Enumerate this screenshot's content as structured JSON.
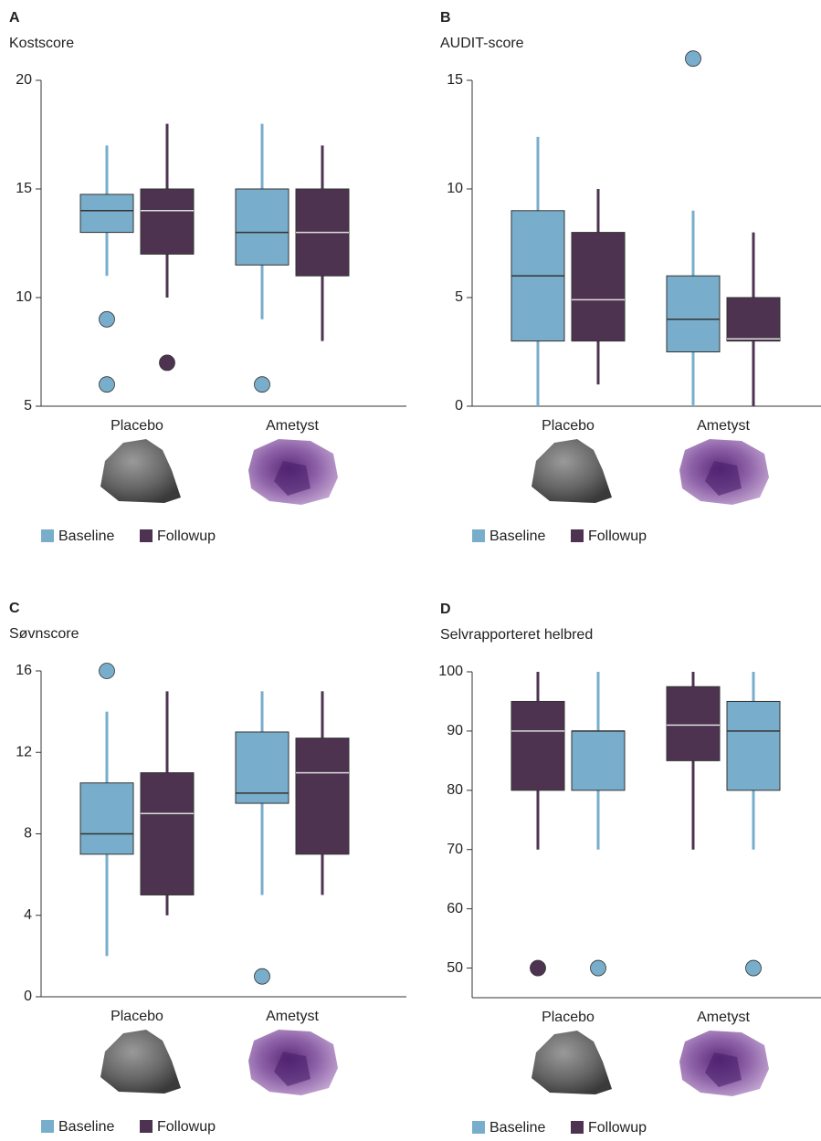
{
  "chart_data": [
    {
      "type": "box",
      "panel": "A",
      "ylabel": "Kostscore",
      "categories": [
        "Placebo",
        "Ametyst"
      ],
      "ylim": [
        5,
        20
      ],
      "yticks": [
        5,
        10,
        15,
        20
      ],
      "box_order": [
        0,
        1
      ],
      "series": [
        {
          "name": "Baseline",
          "color": "#78aecb",
          "median_color": "#333333",
          "values": [
            {
              "low": 11,
              "q1": 13,
              "median": 14,
              "q3": 14.75,
              "high": 17,
              "outliers": [
                9,
                6
              ]
            },
            {
              "low": 9,
              "q1": 11.5,
              "median": 13,
              "q3": 15,
              "high": 18,
              "outliers": [
                6
              ]
            }
          ]
        },
        {
          "name": "Followup",
          "color": "#4d3350",
          "median_color": "#dddddd",
          "values": [
            {
              "low": 10,
              "q1": 12,
              "median": 14,
              "q3": 15,
              "high": 18,
              "outliers": [
                7
              ]
            },
            {
              "low": 8,
              "q1": 11,
              "median": 13,
              "q3": 15,
              "high": 17,
              "outliers": []
            }
          ]
        }
      ]
    },
    {
      "type": "box",
      "panel": "B",
      "ylabel": "AUDIT-score",
      "categories": [
        "Placebo",
        "Ametyst"
      ],
      "ylim": [
        0,
        15
      ],
      "yticks": [
        0,
        5,
        10,
        15
      ],
      "box_order": [
        0,
        1
      ],
      "series": [
        {
          "name": "Baseline",
          "color": "#78aecb",
          "median_color": "#333333",
          "values": [
            {
              "low": 0,
              "q1": 3,
              "median": 6,
              "q3": 9,
              "high": 12.4,
              "outliers": []
            },
            {
              "low": 0,
              "q1": 2.5,
              "median": 4,
              "q3": 6,
              "high": 9,
              "outliers": [
                16
              ]
            }
          ]
        },
        {
          "name": "Followup",
          "color": "#4d3350",
          "median_color": "#dddddd",
          "values": [
            {
              "low": 1,
              "q1": 3,
              "median": 4.9,
              "q3": 8,
              "high": 10,
              "outliers": []
            },
            {
              "low": 0,
              "q1": 3,
              "median": 3.1,
              "q3": 5,
              "high": 8,
              "outliers": []
            }
          ]
        }
      ]
    },
    {
      "type": "box",
      "panel": "C",
      "ylabel": "Søvnscore",
      "categories": [
        "Placebo",
        "Ametyst"
      ],
      "ylim": [
        0,
        16
      ],
      "yticks": [
        0,
        4,
        8,
        12,
        16
      ],
      "box_order": [
        0,
        1
      ],
      "series": [
        {
          "name": "Baseline",
          "color": "#78aecb",
          "median_color": "#333333",
          "values": [
            {
              "low": 2,
              "q1": 7,
              "median": 8,
              "q3": 10.5,
              "high": 14,
              "outliers": [
                16
              ]
            },
            {
              "low": 5,
              "q1": 9.5,
              "median": 10,
              "q3": 13,
              "high": 15,
              "outliers": [
                1
              ]
            }
          ]
        },
        {
          "name": "Followup",
          "color": "#4d3350",
          "median_color": "#dddddd",
          "values": [
            {
              "low": 4,
              "q1": 5,
              "median": 9,
              "q3": 11,
              "high": 15,
              "outliers": []
            },
            {
              "low": 5,
              "q1": 7,
              "median": 11,
              "q3": 12.7,
              "high": 15,
              "outliers": []
            }
          ]
        }
      ]
    },
    {
      "type": "box",
      "panel": "D",
      "ylabel": "Selvrapporteret helbred",
      "categories": [
        "Placebo",
        "Ametyst"
      ],
      "ylim": [
        45,
        100
      ],
      "yticks": [
        50,
        60,
        70,
        80,
        90,
        100
      ],
      "box_order": [
        1,
        0
      ],
      "series": [
        {
          "name": "Baseline",
          "color": "#78aecb",
          "median_color": "#333333",
          "values": [
            {
              "low": 70,
              "q1": 80,
              "median": 90,
              "q3": 90,
              "high": 100,
              "outliers": [
                50
              ]
            },
            {
              "low": 70,
              "q1": 80,
              "median": 90,
              "q3": 95,
              "high": 100,
              "outliers": [
                50
              ]
            }
          ]
        },
        {
          "name": "Followup",
          "color": "#4d3350",
          "median_color": "#dddddd",
          "values": [
            {
              "low": 70,
              "q1": 80,
              "median": 90,
              "q3": 95,
              "high": 100,
              "outliers": [
                50
              ]
            },
            {
              "low": 70,
              "q1": 85,
              "median": 91,
              "q3": 97.5,
              "high": 100,
              "outliers": []
            }
          ]
        }
      ]
    }
  ]
}
